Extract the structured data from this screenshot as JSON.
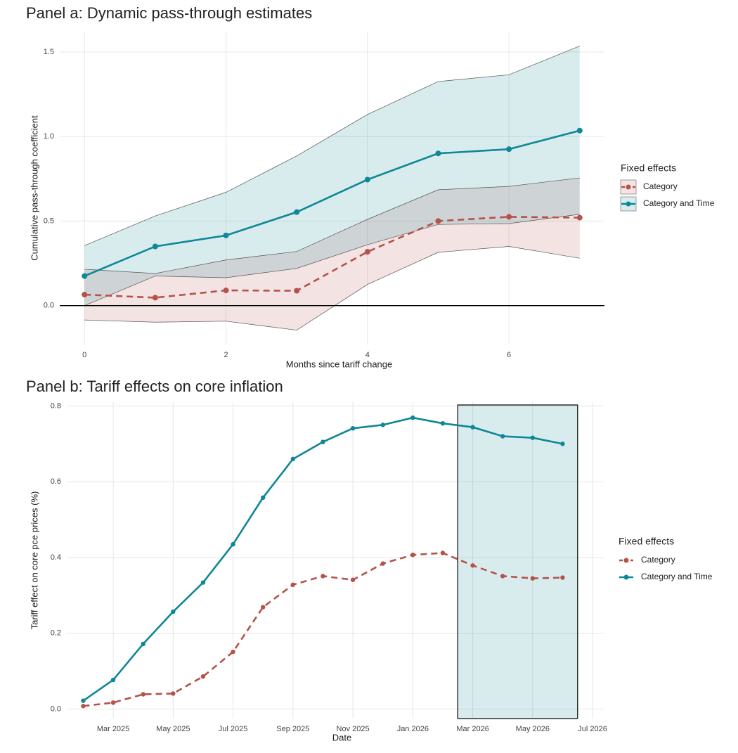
{
  "chart_data": [
    {
      "type": "line",
      "title": "Panel a: Dynamic pass-through estimates",
      "x_label": "Months since tariff change",
      "y_label": "Cumulative pass-through coefficient",
      "x": [
        0,
        1,
        2,
        3,
        4,
        5,
        6,
        7
      ],
      "xlim": [
        -0.35,
        7.35
      ],
      "xticks": [
        0,
        2,
        4,
        6
      ],
      "ylim": [
        -0.23,
        1.62
      ],
      "yticks": [
        {
          "value": 0,
          "label": "0.0"
        },
        {
          "value": 0.5,
          "label": "0.5"
        },
        {
          "value": 1,
          "label": "1.0"
        },
        {
          "value": 1.5,
          "label": "1.5"
        }
      ],
      "hline": 0,
      "grid": true,
      "legend_title": "Fixed effects",
      "legend_position": "right",
      "series": [
        {
          "name": "Category",
          "color": "#b5524a",
          "linestyle": "dashed",
          "values": [
            0.065,
            0.047,
            0.09,
            0.088,
            0.318,
            0.5,
            0.525,
            0.52
          ],
          "lower": [
            -0.085,
            -0.098,
            -0.092,
            -0.145,
            0.125,
            0.315,
            0.35,
            0.28
          ],
          "upper": [
            0.215,
            0.19,
            0.27,
            0.32,
            0.51,
            0.685,
            0.705,
            0.755
          ]
        },
        {
          "name": "Category and Time",
          "color": "#0e8796",
          "linestyle": "solid",
          "values": [
            0.175,
            0.35,
            0.415,
            0.553,
            0.745,
            0.9,
            0.925,
            1.035
          ],
          "lower": [
            0.0,
            0.175,
            0.165,
            0.22,
            0.36,
            0.48,
            0.485,
            0.54
          ],
          "upper": [
            0.355,
            0.53,
            0.67,
            0.885,
            1.13,
            1.325,
            1.365,
            1.535
          ]
        }
      ]
    },
    {
      "type": "line",
      "title": "Panel b: Tariff effects on core inflation",
      "x_label": "Date",
      "y_label": "Tariff effect on core pce prices (%)",
      "x": [
        "2025-02",
        "2025-03",
        "2025-04",
        "2025-05",
        "2025-06",
        "2025-07",
        "2025-08",
        "2025-09",
        "2025-10",
        "2025-11",
        "2025-12",
        "2026-01",
        "2026-02",
        "2026-03",
        "2026-04",
        "2026-05",
        "2026-06"
      ],
      "xticks": [
        {
          "value": "2025-03",
          "label": "Mar 2025"
        },
        {
          "value": "2025-05",
          "label": "May 2025"
        },
        {
          "value": "2025-07",
          "label": "Jul 2025"
        },
        {
          "value": "2025-09",
          "label": "Sep 2025"
        },
        {
          "value": "2025-11",
          "label": "Nov 2025"
        },
        {
          "value": "2026-01",
          "label": "Jan 2026"
        },
        {
          "value": "2026-03",
          "label": "Mar 2026"
        },
        {
          "value": "2026-05",
          "label": "May 2026"
        },
        {
          "value": "2026-07",
          "label": "Jul 2026"
        }
      ],
      "ylim": [
        -0.025,
        0.81
      ],
      "yticks": [
        {
          "value": 0,
          "label": "0.0"
        },
        0.2,
        0.4,
        0.6,
        0.8
      ],
      "grid": true,
      "highlight": [
        "2026-03",
        "2026-06"
      ],
      "legend_title": "Fixed effects",
      "legend_position": "right",
      "series": [
        {
          "name": "Category",
          "color": "#b5524a",
          "linestyle": "dashed",
          "values": [
            0.008,
            0.017,
            0.039,
            0.041,
            0.086,
            0.151,
            0.269,
            0.328,
            0.351,
            0.341,
            0.384,
            0.407,
            0.412,
            0.379,
            0.351,
            0.345,
            0.347
          ]
        },
        {
          "name": "Category and Time",
          "color": "#0e8796",
          "linestyle": "solid",
          "values": [
            0.022,
            0.077,
            0.172,
            0.257,
            0.334,
            0.435,
            0.558,
            0.66,
            0.705,
            0.741,
            0.75,
            0.769,
            0.754,
            0.744,
            0.72,
            0.716,
            0.7
          ]
        }
      ]
    }
  ]
}
